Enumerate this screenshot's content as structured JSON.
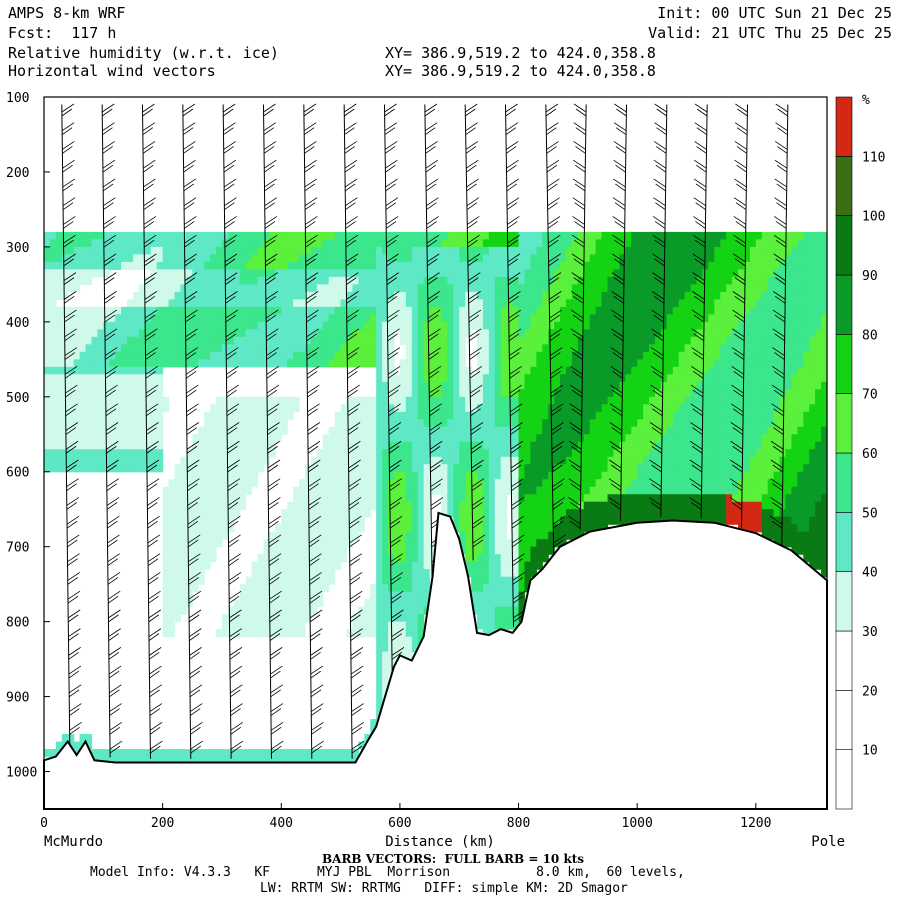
{
  "header": {
    "model": "AMPS 8-km WRF",
    "fcst": "Fcst:  117 h",
    "field1": "Relative humidity (w.r.t. ice)",
    "field2": "Horizontal wind vectors",
    "init": "Init: 00 UTC Sun 21 Dec 25",
    "valid": "Valid: 21 UTC Thu 25 Dec 25",
    "xy1": "XY= 386.9,519.2 to 424.0,358.8",
    "xy2": "XY= 386.9,519.2 to 424.0,358.8"
  },
  "footer": {
    "barb_note": "BARB VECTORS:  FULL BARB = 10 kts",
    "model_info": "Model Info: V4.3.3   KF      MYJ PBL  Morrison           8.0 km,  60 levels,",
    "model_info2": "LW: RRTM SW: RRTMG   DIFF: simple KM: 2D Smagor"
  },
  "chart_data": {
    "type": "heatmap",
    "title": "Relative humidity (w.r.t. ice)",
    "xlabel": "Distance (km)",
    "ylabel": "",
    "x_start_label": "McMurdo",
    "x_end_label": "Pole",
    "xlim": [
      0,
      1320
    ],
    "ylim": [
      1050,
      100
    ],
    "xticks": [
      0,
      200,
      400,
      600,
      800,
      1000,
      1200
    ],
    "yticks": [
      100,
      200,
      300,
      400,
      500,
      600,
      700,
      800,
      900,
      1000
    ],
    "colorbar": {
      "unit": "%",
      "levels": [
        10,
        20,
        30,
        40,
        50,
        60,
        70,
        80,
        90,
        100,
        110
      ],
      "colors": [
        "#ffffff",
        "#ffffff",
        "#ffffff",
        "#cffaea",
        "#5ee8c6",
        "#3ce68c",
        "#5af03c",
        "#14d214",
        "#0a9a28",
        "#0a7a14",
        "#3c6e14",
        "#d22814"
      ]
    },
    "terrain": [
      [
        0,
        985
      ],
      [
        20,
        980
      ],
      [
        40,
        960
      ],
      [
        55,
        978
      ],
      [
        70,
        960
      ],
      [
        85,
        985
      ],
      [
        120,
        988
      ],
      [
        300,
        988
      ],
      [
        525,
        988
      ],
      [
        545,
        960
      ],
      [
        560,
        940
      ],
      [
        575,
        900
      ],
      [
        590,
        860
      ],
      [
        600,
        845
      ],
      [
        620,
        852
      ],
      [
        640,
        820
      ],
      [
        655,
        740
      ],
      [
        665,
        655
      ],
      [
        685,
        660
      ],
      [
        700,
        690
      ],
      [
        715,
        740
      ],
      [
        730,
        815
      ],
      [
        750,
        818
      ],
      [
        770,
        810
      ],
      [
        790,
        815
      ],
      [
        805,
        800
      ],
      [
        820,
        745
      ],
      [
        840,
        730
      ],
      [
        870,
        700
      ],
      [
        920,
        680
      ],
      [
        1000,
        668
      ],
      [
        1060,
        665
      ],
      [
        1130,
        668
      ],
      [
        1200,
        682
      ],
      [
        1260,
        705
      ],
      [
        1320,
        745
      ]
    ],
    "grid": false
  }
}
